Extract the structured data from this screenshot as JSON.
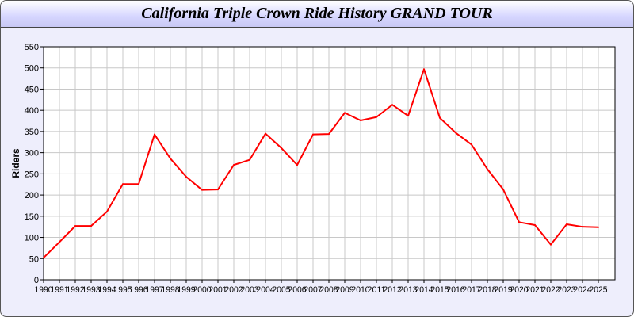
{
  "chart_data": {
    "type": "line",
    "title": "California Triple Crown Ride History GRAND TOUR",
    "xlabel": "",
    "ylabel": "Riders",
    "ylim": [
      0,
      550
    ],
    "yticks": [
      0,
      50,
      100,
      150,
      200,
      250,
      300,
      350,
      400,
      450,
      500,
      550
    ],
    "grid": true,
    "categories": [
      "1990",
      "1991",
      "1992",
      "1993",
      "1994",
      "1995",
      "1996",
      "1997",
      "1998",
      "1999",
      "2000",
      "2001",
      "2002",
      "2003",
      "2004",
      "2005",
      "2006",
      "2007",
      "2008",
      "2009",
      "2010",
      "2011",
      "2012",
      "2013",
      "2014",
      "2015",
      "2016",
      "2017",
      "2018",
      "2019",
      "2020",
      "2021",
      "2022",
      "2023",
      "2024",
      "2025"
    ],
    "series": [
      {
        "values": [
          52,
          89,
          127,
          127,
          161,
          226,
          226,
          343,
          286,
          243,
          212,
          213,
          271,
          283,
          345,
          311,
          271,
          343,
          344,
          394,
          376,
          384,
          413,
          387,
          497,
          382,
          347,
          319,
          261,
          213,
          136,
          129,
          83,
          131,
          125,
          124
        ],
        "color": "#ff0000"
      }
    ]
  }
}
